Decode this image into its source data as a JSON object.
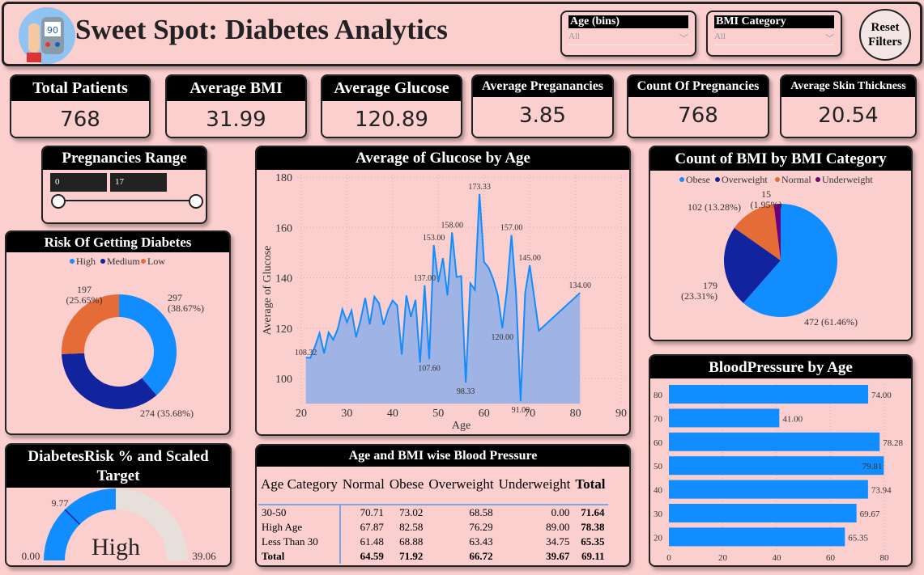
{
  "header": {
    "title": "Sweet Spot: Diabetes Analytics",
    "logo_icon": "glucose-meter-icon",
    "logo_reading": "90",
    "slicers": [
      {
        "label": "Age (bins)",
        "value": "All"
      },
      {
        "label": "BMI Category",
        "value": "All"
      }
    ],
    "reset_label_1": "Reset",
    "reset_label_2": "Filters"
  },
  "kpis": [
    {
      "label": "Total Patients",
      "value": "768"
    },
    {
      "label": "Average BMI",
      "value": "31.99"
    },
    {
      "label": "Average Glucose",
      "value": "120.89"
    },
    {
      "label": "Average Preganancies",
      "value": "3.85"
    },
    {
      "label": "Count Of Pregnancies",
      "value": "768"
    },
    {
      "label": "Average Skin Thickness",
      "value": "20.54"
    }
  ],
  "pregnancies_range": {
    "title": "Pregnancies Range",
    "min": "0",
    "max": "17"
  },
  "colors": {
    "blue": "#118dff",
    "navy": "#12239e",
    "orange": "#e66c37",
    "purple": "#6b007b",
    "gauge_bg": "#e6dfda",
    "area": "#9fb4e4"
  },
  "chart_data": [
    {
      "type": "donut",
      "title": "Risk Of Getting Diabetes",
      "legend_placement": "top",
      "categories": [
        "High",
        "Medium",
        "Low"
      ],
      "values": [
        297,
        274,
        197
      ],
      "labels": [
        "297\n(38.67%)",
        "274 (35.68%)",
        "197\n(25.65%)"
      ]
    },
    {
      "type": "area",
      "title": "Average of Glucose by Age",
      "xlabel": "Age",
      "ylabel": "Average of Glucose",
      "xlim": [
        20,
        90
      ],
      "ylim": [
        90,
        180
      ],
      "xticks": [
        "20",
        "30",
        "40",
        "50",
        "60",
        "70",
        "80",
        "90"
      ],
      "yticks": [
        "100",
        "120",
        "140",
        "160",
        "180"
      ],
      "grid": true,
      "x": [
        21,
        22,
        23,
        24,
        25,
        26,
        27,
        28,
        29,
        30,
        31,
        32,
        33,
        34,
        35,
        36,
        37,
        38,
        39,
        40,
        41,
        42,
        43,
        44,
        45,
        46,
        47,
        48,
        49,
        50,
        51,
        52,
        53,
        54,
        55,
        56,
        57,
        58,
        59,
        60,
        61,
        62,
        63,
        64,
        65,
        66,
        67,
        68,
        69,
        70,
        72,
        81
      ],
      "y": [
        108.32,
        108.2,
        112.7,
        118,
        110,
        118.3,
        115.4,
        119.7,
        127.5,
        122.4,
        127,
        116.4,
        123.4,
        132,
        121.5,
        132.5,
        130,
        121.3,
        127.2,
        131,
        129,
        109.5,
        133,
        124.5,
        131.2,
        106.3,
        137,
        107.6,
        153,
        138.3,
        147.8,
        133,
        158,
        140.3,
        140.7,
        98.33,
        137.8,
        135.2,
        173.33,
        146.3,
        144,
        139.5,
        133.2,
        120,
        135,
        157,
        134,
        91,
        134,
        145,
        119,
        134
      ],
      "data_labels": [
        {
          "x": 21,
          "text": "108.32"
        },
        {
          "x": 48,
          "text": "107.60"
        },
        {
          "x": 47,
          "text": "137.00"
        },
        {
          "x": 49,
          "text": "153.00"
        },
        {
          "x": 53,
          "text": "158.00"
        },
        {
          "x": 56,
          "text": "98.33"
        },
        {
          "x": 59,
          "text": "173.33"
        },
        {
          "x": 64,
          "text": "120.00"
        },
        {
          "x": 66,
          "text": "157.00"
        },
        {
          "x": 68,
          "text": "91.00"
        },
        {
          "x": 70,
          "text": "145.00"
        },
        {
          "x": 81,
          "text": "134.00"
        }
      ]
    },
    {
      "type": "pie",
      "title": "Count of BMI by BMI Category",
      "legend_placement": "top",
      "categories": [
        "Obese",
        "Overweight",
        "Normal",
        "Underweight"
      ],
      "values": [
        472,
        179,
        102,
        15
      ],
      "labels": [
        "472 (61.46%)",
        "179\n(23.31%)",
        "102 (13.28%)",
        "15\n(1.95%)"
      ]
    },
    {
      "type": "bar",
      "orientation": "horizontal",
      "title": "BloodPressure by Age",
      "categories": [
        "80",
        "70",
        "60",
        "50",
        "40",
        "30",
        "20"
      ],
      "values": [
        74.0,
        41.0,
        78.28,
        79.81,
        73.94,
        69.67,
        65.35
      ],
      "labels": [
        "74.00",
        "41.00",
        "78.28",
        "79.81",
        "73.94",
        "69.67",
        "65.35"
      ],
      "xlim": [
        0,
        80
      ],
      "xticks": [
        "0",
        "20",
        "40",
        "60",
        "80"
      ]
    },
    {
      "type": "gauge",
      "title": "DiabetesRisk % and Scaled Target",
      "min": 0,
      "max": 39.06,
      "min_label": "0.00",
      "max_label": "39.06",
      "fill_fraction": 0.5,
      "target": 9.77,
      "target_label": "9.77",
      "center_label": "High"
    },
    {
      "type": "table",
      "title": "Age and BMI wise Blood Pressure",
      "columns": [
        "Age Category",
        "Normal",
        "Obese",
        "Overweight",
        "Underweight",
        "Total"
      ],
      "rows": [
        [
          "30-50",
          "70.71",
          "73.02",
          "68.58",
          "0.00",
          "71.64"
        ],
        [
          "High Age",
          "67.87",
          "82.58",
          "76.29",
          "89.00",
          "78.38"
        ],
        [
          "Less Than 30",
          "61.48",
          "68.88",
          "63.43",
          "34.75",
          "65.35"
        ],
        [
          "Total",
          "64.59",
          "71.92",
          "66.72",
          "39.67",
          "69.11"
        ]
      ]
    }
  ]
}
